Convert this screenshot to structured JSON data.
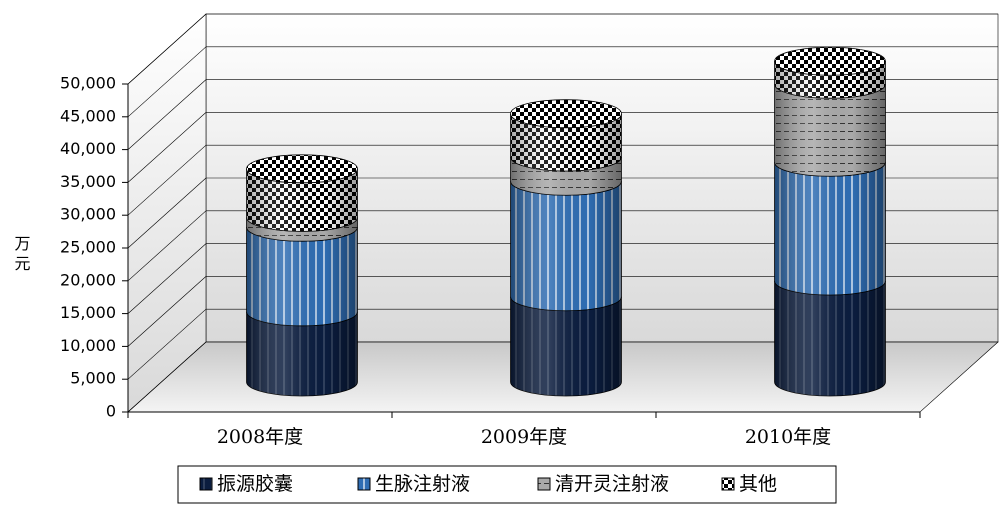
{
  "chart_data": {
    "type": "bar",
    "stacked": true,
    "shape": "cylinder",
    "y_label": "万元",
    "categories": [
      "2008年度",
      "2009年度",
      "2010年度"
    ],
    "series": [
      {
        "name": "振源胶囊",
        "color": "#0b1d3f",
        "pattern": "stripes",
        "values": [
          10700,
          13000,
          15400
        ]
      },
      {
        "name": "生脉注射液",
        "color": "#2f6db3",
        "pattern": "stripes",
        "values": [
          12900,
          17600,
          18100
        ]
      },
      {
        "name": "清开灵注射液",
        "color": "#a9a9a9",
        "pattern": "dashes",
        "values": [
          1500,
          3700,
          11900
        ]
      },
      {
        "name": "其他",
        "color": "#000000",
        "pattern": "checker",
        "values": [
          7400,
          6600,
          3500
        ]
      }
    ],
    "ylim": [
      0,
      50000
    ],
    "yticks": [
      0,
      {
        "value": 5000,
        "label": "5,000"
      },
      {
        "value": 10000,
        "label": "10,000"
      },
      {
        "value": 15000,
        "label": "15,000"
      },
      {
        "value": 20000,
        "label": "20,000"
      },
      {
        "value": 25000,
        "label": "25,000"
      },
      {
        "value": 30000,
        "label": "30,000"
      },
      {
        "value": 35000,
        "label": "35,000"
      },
      {
        "value": 40000,
        "label": "40,000"
      },
      {
        "value": 45000,
        "label": "45,000"
      },
      {
        "value": 50000,
        "label": "50,000"
      }
    ],
    "grid": true,
    "legend": "bottom"
  }
}
